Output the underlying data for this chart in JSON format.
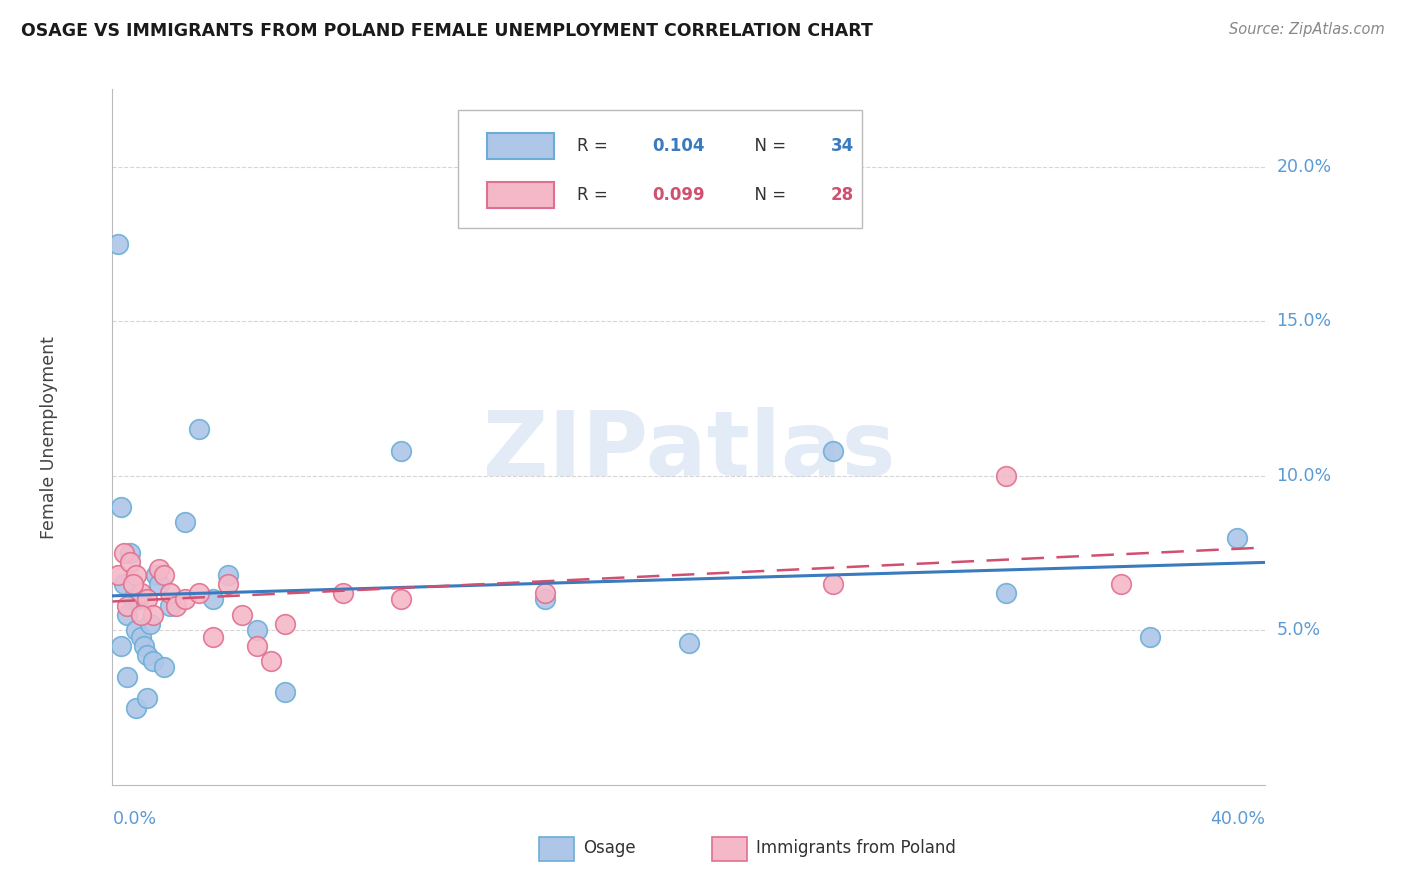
{
  "title": "OSAGE VS IMMIGRANTS FROM POLAND FEMALE UNEMPLOYMENT CORRELATION CHART",
  "source": "Source: ZipAtlas.com",
  "ylabel": "Female Unemployment",
  "legend_osage": "Osage",
  "legend_poland": "Immigrants from Poland",
  "legend_r_osage": "0.104",
  "legend_n_osage": "34",
  "legend_r_poland": "0.099",
  "legend_n_poland": "28",
  "osage_color": "#aec6e8",
  "osage_edge_color": "#6aaed6",
  "poland_color": "#f4b8c8",
  "poland_edge_color": "#e07090",
  "trend_osage_color": "#3a7abf",
  "trend_poland_color": "#d05070",
  "xlim": [
    0.0,
    0.4
  ],
  "ylim": [
    0.0,
    0.225
  ],
  "yticks": [
    0.05,
    0.1,
    0.15,
    0.2
  ],
  "ytick_labels": [
    "5.0%",
    "10.0%",
    "15.0%",
    "20.0%"
  ],
  "background_color": "#ffffff",
  "grid_color": "#cccccc",
  "watermark": "ZIPatlas",
  "osage_x": [
    0.002,
    0.003,
    0.004,
    0.005,
    0.006,
    0.007,
    0.008,
    0.009,
    0.01,
    0.011,
    0.012,
    0.013,
    0.014,
    0.015,
    0.016,
    0.018,
    0.02,
    0.025,
    0.03,
    0.035,
    0.04,
    0.05,
    0.06,
    0.1,
    0.15,
    0.2,
    0.25,
    0.31,
    0.36,
    0.39,
    0.003,
    0.005,
    0.008,
    0.012
  ],
  "osage_y": [
    0.175,
    0.09,
    0.065,
    0.055,
    0.075,
    0.06,
    0.05,
    0.06,
    0.048,
    0.045,
    0.042,
    0.052,
    0.04,
    0.068,
    0.065,
    0.038,
    0.058,
    0.085,
    0.115,
    0.06,
    0.068,
    0.05,
    0.03,
    0.108,
    0.06,
    0.046,
    0.108,
    0.062,
    0.048,
    0.08,
    0.045,
    0.035,
    0.025,
    0.028
  ],
  "poland_x": [
    0.002,
    0.004,
    0.006,
    0.008,
    0.01,
    0.012,
    0.014,
    0.016,
    0.018,
    0.02,
    0.022,
    0.025,
    0.03,
    0.035,
    0.04,
    0.045,
    0.05,
    0.055,
    0.06,
    0.08,
    0.1,
    0.15,
    0.25,
    0.31,
    0.35,
    0.005,
    0.007,
    0.01
  ],
  "poland_y": [
    0.068,
    0.075,
    0.072,
    0.068,
    0.062,
    0.06,
    0.055,
    0.07,
    0.068,
    0.062,
    0.058,
    0.06,
    0.062,
    0.048,
    0.065,
    0.055,
    0.045,
    0.04,
    0.052,
    0.062,
    0.06,
    0.062,
    0.065,
    0.1,
    0.065,
    0.058,
    0.065,
    0.055
  ]
}
